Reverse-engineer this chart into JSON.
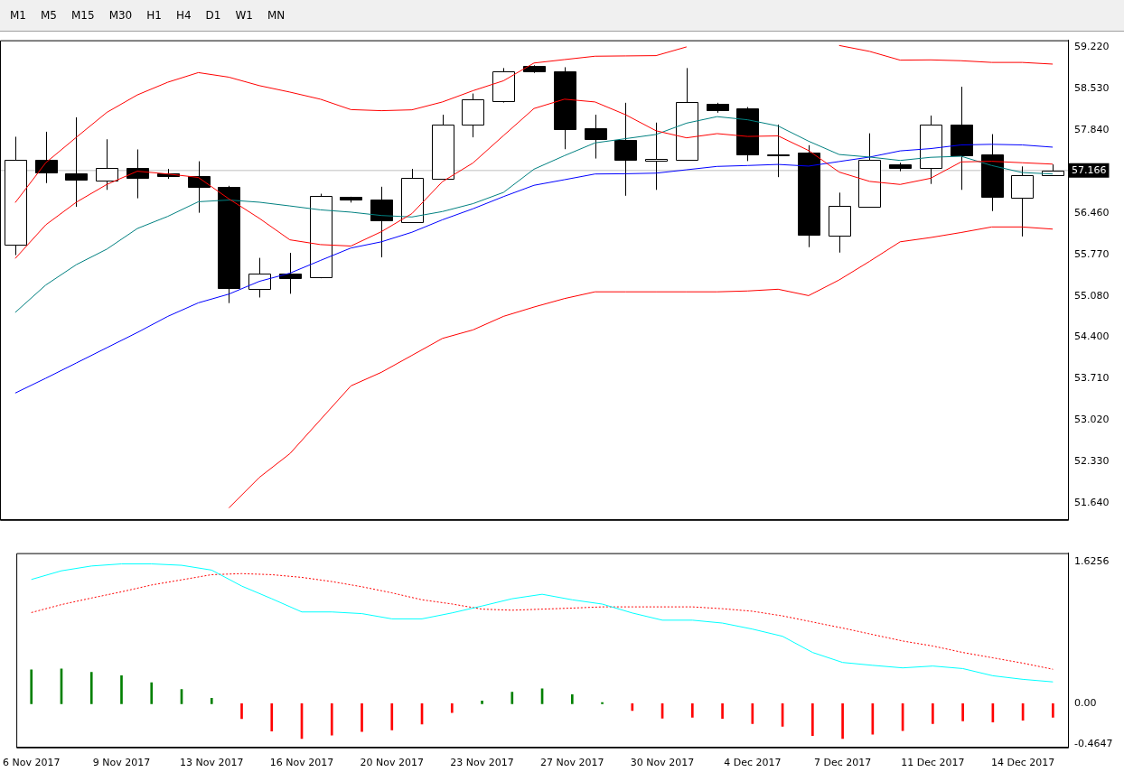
{
  "chart_data": [
    {
      "type": "other",
      "annotations": [
        "M1",
        "M5",
        "M15",
        "M30",
        "H1",
        "H4",
        "D1",
        "W1",
        "MN"
      ]
    },
    {
      "type": "candlestick",
      "categories": [
        null,
        null,
        null,
        null,
        null,
        null,
        null,
        null,
        null,
        null,
        null,
        null,
        null,
        null,
        null,
        null,
        null,
        null,
        null,
        null,
        null,
        null,
        null,
        null,
        null,
        null,
        null,
        null,
        null,
        null,
        null,
        null,
        null,
        null,
        null
      ],
      "ohlc": [
        [
          55.934,
          57.727,
          55.76,
          57.343
        ],
        [
          57.347,
          57.81,
          56.957,
          57.14
        ],
        [
          57.122,
          58.05,
          56.563,
          57.013
        ],
        [
          57.005,
          57.685,
          56.844,
          57.202
        ],
        [
          57.206,
          57.516,
          56.704,
          57.042
        ],
        [
          57.118,
          57.192,
          57.027,
          57.07
        ],
        [
          57.08,
          57.319,
          56.464,
          56.887
        ],
        [
          56.896,
          56.911,
          54.963,
          55.211
        ],
        [
          55.202,
          55.714,
          55.056,
          55.456
        ],
        [
          55.46,
          55.798,
          55.118,
          55.385
        ],
        [
          55.39,
          56.78,
          55.376,
          56.737
        ],
        [
          56.727,
          56.73,
          56.633,
          56.689
        ],
        [
          56.685,
          56.896,
          55.723,
          56.337
        ],
        [
          56.315,
          57.192,
          56.315,
          57.047
        ],
        [
          57.033,
          58.093,
          57.033,
          57.934
        ],
        [
          57.934,
          58.445,
          57.717,
          58.343
        ],
        [
          58.315,
          58.868,
          58.295,
          58.807
        ],
        [
          58.906,
          58.914,
          58.788,
          58.816
        ],
        [
          58.812,
          58.882,
          57.52,
          57.858
        ],
        [
          57.868,
          58.093,
          57.365,
          57.689
        ],
        [
          57.671,
          58.291,
          56.746,
          57.351
        ],
        [
          57.329,
          57.962,
          56.844,
          57.361
        ],
        [
          57.343,
          58.868,
          57.329,
          58.3
        ],
        [
          58.277,
          58.291,
          58.126,
          58.168
        ],
        [
          58.192,
          58.22,
          57.323,
          57.436
        ],
        [
          57.432,
          57.929,
          57.056,
          57.432
        ],
        [
          57.46,
          57.586,
          55.892,
          56.098
        ],
        [
          56.09,
          56.798,
          55.802,
          56.582
        ],
        [
          56.568,
          57.784,
          56.549,
          57.347
        ],
        [
          57.272,
          57.295,
          57.154,
          57.21
        ],
        [
          57.202,
          58.079,
          56.943,
          57.934
        ],
        [
          57.934,
          58.558,
          56.844,
          57.422
        ],
        [
          57.427,
          57.77,
          56.492,
          56.732
        ],
        [
          56.718,
          57.234,
          56.07,
          57.089
        ],
        [
          57.089,
          57.267,
          57.075,
          57.166
        ]
      ],
      "series": [
        {
          "type": "line",
          "color": "#ff0000",
          "values": [
            56.633,
            57.295,
            57.717,
            58.131,
            58.422,
            58.633,
            58.793,
            58.717,
            58.576,
            58.469,
            58.351,
            58.178,
            58.16,
            58.174,
            58.305,
            58.492,
            58.657,
            58.952,
            59.009,
            59.065,
            59.07,
            59.075,
            59.22,
            null,
            null,
            null,
            null,
            59.244,
            59.145,
            59.0,
            59.004,
            58.99,
            58.962,
            58.962,
            58.934
          ]
        },
        {
          "type": "line",
          "color": "#ff0000",
          "values": [
            null,
            null,
            null,
            null,
            null,
            null,
            null,
            51.559,
            52.066,
            52.461,
            53.024,
            53.587,
            53.813,
            54.094,
            54.376,
            54.517,
            54.742,
            54.897,
            55.038,
            55.15,
            55.15,
            55.15,
            55.15,
            55.15,
            55.164,
            55.193,
            55.087,
            55.347,
            55.657,
            55.981,
            56.052,
            56.136,
            56.228,
            56.228,
            56.192
          ]
        },
        {
          "type": "line",
          "color": "#ff0000",
          "values": [
            55.704,
            56.263,
            56.639,
            56.934,
            57.154,
            57.108,
            57.051,
            56.695,
            56.371,
            56.014,
            55.935,
            55.911,
            56.15,
            56.45,
            56.981,
            57.291,
            57.746,
            58.196,
            58.351,
            58.305,
            58.093,
            57.826,
            57.709,
            57.779,
            57.732,
            57.741,
            57.498,
            57.14,
            56.985,
            56.934,
            57.037,
            57.309,
            57.319,
            57.295,
            57.272
          ]
        },
        {
          "type": "line",
          "color": "#008080",
          "values": [
            54.808,
            55.263,
            55.601,
            55.859,
            56.202,
            56.404,
            56.647,
            56.675,
            56.639,
            56.577,
            56.512,
            56.474,
            56.418,
            56.394,
            56.484,
            56.615,
            56.802,
            57.188,
            57.413,
            57.625,
            57.695,
            57.765,
            57.953,
            58.061,
            58.009,
            57.906,
            57.653,
            57.432,
            57.389,
            57.333,
            57.385,
            57.403,
            57.249,
            57.132,
            57.108
          ]
        },
        {
          "type": "line",
          "color": "#0000ff",
          "values": [
            53.468,
            53.714,
            53.967,
            54.221,
            54.474,
            54.742,
            54.967,
            55.112,
            55.324,
            55.46,
            55.671,
            55.878,
            55.981,
            56.14,
            56.347,
            56.53,
            56.732,
            56.92,
            57.013,
            57.108,
            57.112,
            57.122,
            57.178,
            57.234,
            57.249,
            57.267,
            57.239,
            57.315,
            57.389,
            57.492,
            57.53,
            57.591,
            57.601,
            57.591,
            57.554
          ]
        }
      ],
      "ylim": [
        51.36,
        59.33
      ],
      "yticks": [
        {
          "value": 59.22,
          "label": "59.220"
        },
        {
          "value": 58.53,
          "label": "58.530"
        },
        {
          "value": 57.84,
          "label": "57.840"
        },
        {
          "value": 56.46,
          "label": "56.460"
        },
        {
          "value": 55.77,
          "label": "55.770"
        },
        {
          "value": 55.08,
          "label": "55.080"
        },
        {
          "value": 54.4,
          "label": "54.400"
        },
        {
          "value": 53.71,
          "label": "53.710"
        },
        {
          "value": 53.02,
          "label": "53.020"
        },
        {
          "value": 52.33,
          "label": "52.330"
        },
        {
          "value": 51.64,
          "label": "51.640"
        }
      ],
      "ref_lines": [
        {
          "axis": "y",
          "value": 57.166,
          "label": "57.166",
          "color": "#c0c0c0"
        }
      ]
    },
    {
      "type": "bar",
      "categories": [
        "6 Nov 2017",
        null,
        null,
        "9 Nov 2017",
        null,
        null,
        "13 Nov 2017",
        null,
        null,
        "16 Nov 2017",
        null,
        null,
        "20 Nov 2017",
        null,
        null,
        "23 Nov 2017",
        null,
        null,
        "27 Nov 2017",
        null,
        null,
        "30 Nov 2017",
        null,
        null,
        "4 Dec 2017",
        null,
        null,
        "7 Dec 2017",
        null,
        null,
        "11 Dec 2017",
        null,
        null,
        "14 Dec 2017",
        null
      ],
      "series": [
        {
          "type": "bar",
          "values": [
            0.386,
            0.398,
            0.358,
            0.319,
            0.24,
            0.162,
            0.063,
            -0.17,
            -0.312,
            -0.399,
            -0.359,
            -0.319,
            -0.299,
            -0.232,
            -0.102,
            0.032,
            0.131,
            0.17,
            0.103,
            0.012,
            -0.078,
            -0.165,
            -0.156,
            -0.168,
            -0.229,
            -0.258,
            -0.365,
            -0.398,
            -0.348,
            -0.307,
            -0.229,
            -0.196,
            -0.209,
            -0.188,
            -0.156
          ],
          "colors": [
            "#008000",
            "#008000",
            "#008000",
            "#008000",
            "#008000",
            "#008000",
            "#008000",
            "#ff0000",
            "#ff0000",
            "#ff0000",
            "#ff0000",
            "#ff0000",
            "#ff0000",
            "#ff0000",
            "#ff0000",
            "#008000",
            "#008000",
            "#008000",
            "#008000",
            "#008000",
            "#ff0000",
            "#ff0000",
            "#ff0000",
            "#ff0000",
            "#ff0000",
            "#ff0000",
            "#ff0000",
            "#ff0000",
            "#ff0000",
            "#ff0000",
            "#ff0000",
            "#ff0000",
            "#ff0000",
            "#ff0000",
            "#ff0000"
          ]
        },
        {
          "type": "line",
          "color": "#00ffff",
          "values": [
            1.419,
            1.518,
            1.573,
            1.597,
            1.597,
            1.581,
            1.526,
            1.344,
            1.199,
            1.048,
            1.048,
            1.029,
            0.969,
            0.969,
            1.037,
            1.116,
            1.199,
            1.25,
            1.187,
            1.138,
            1.036,
            0.954,
            0.954,
            0.921,
            0.852,
            0.77,
            0.585,
            0.471,
            0.438,
            0.409,
            0.43,
            0.401,
            0.319,
            0.278,
            0.249
          ]
        },
        {
          "type": "line",
          "color": "#ff0000",
          "line_style": "dotted",
          "values": [
            1.041,
            1.132,
            1.207,
            1.278,
            1.356,
            1.415,
            1.474,
            1.486,
            1.474,
            1.443,
            1.395,
            1.336,
            1.266,
            1.187,
            1.139,
            1.08,
            1.068,
            1.08,
            1.092,
            1.106,
            1.106,
            1.106,
            1.106,
            1.085,
            1.056,
            1.003,
            0.933,
            0.864,
            0.79,
            0.716,
            0.659,
            0.585,
            0.524,
            0.463,
            0.393
          ]
        }
      ],
      "ylim": [
        -0.5,
        1.72
      ],
      "yticks": [
        {
          "value": 1.6256,
          "label": "1.6256"
        },
        {
          "value": 0,
          "label": "0.00"
        },
        {
          "value": -0.4647,
          "label": "-0.4647"
        }
      ]
    }
  ]
}
